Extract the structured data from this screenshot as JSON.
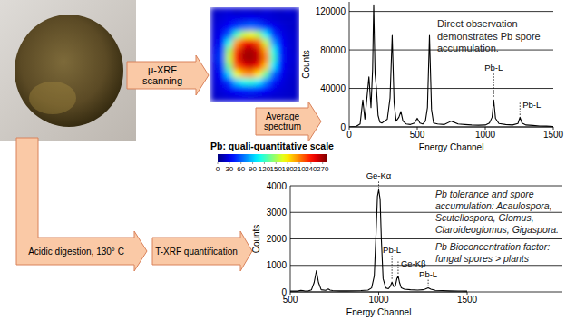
{
  "arrows": {
    "scan": "μ-XRF scanning",
    "average": "Average spectrum",
    "digestion": "Acidic digestion, 130° C",
    "quantification": "T-XRF quantification"
  },
  "heatmap": {
    "cells": [
      [
        20,
        22,
        25,
        20,
        24,
        22,
        20,
        25,
        22,
        20,
        24,
        20
      ],
      [
        22,
        25,
        28,
        30,
        28,
        32,
        30,
        26,
        24,
        22,
        20,
        22
      ],
      [
        24,
        28,
        35,
        50,
        60,
        65,
        58,
        45,
        32,
        26,
        22,
        20
      ],
      [
        25,
        32,
        60,
        120,
        160,
        170,
        150,
        100,
        50,
        30,
        24,
        22
      ],
      [
        26,
        40,
        110,
        200,
        240,
        250,
        220,
        160,
        80,
        35,
        25,
        22
      ],
      [
        28,
        50,
        150,
        230,
        265,
        270,
        255,
        200,
        110,
        40,
        26,
        22
      ],
      [
        28,
        55,
        160,
        240,
        270,
        272,
        260,
        210,
        120,
        42,
        26,
        24
      ],
      [
        26,
        48,
        140,
        220,
        250,
        258,
        240,
        190,
        100,
        38,
        25,
        22
      ],
      [
        25,
        38,
        95,
        170,
        200,
        205,
        180,
        130,
        65,
        32,
        24,
        22
      ],
      [
        24,
        30,
        50,
        90,
        110,
        115,
        100,
        70,
        40,
        28,
        22,
        20
      ],
      [
        22,
        26,
        32,
        40,
        45,
        48,
        42,
        35,
        28,
        24,
        22,
        20
      ],
      [
        20,
        22,
        24,
        26,
        28,
        26,
        25,
        24,
        22,
        22,
        20,
        20
      ]
    ],
    "colorbar": {
      "title": "Pb: quali-quantitative scale",
      "range": [
        0,
        280
      ],
      "ticks": [
        0,
        30,
        60,
        90,
        120,
        150,
        180,
        210,
        240,
        270
      ]
    }
  },
  "chart_data": [
    {
      "type": "line",
      "x": [
        0,
        50,
        80,
        100,
        115,
        130,
        145,
        160,
        172,
        180,
        190,
        200,
        212,
        225,
        240,
        260,
        280,
        300,
        316,
        330,
        345,
        365,
        380,
        395,
        420,
        450,
        480,
        500,
        520,
        540,
        560,
        575,
        590,
        605,
        620,
        650,
        700,
        750,
        800,
        850,
        900,
        950,
        1000,
        1030,
        1050,
        1062,
        1075,
        1100,
        1150,
        1200,
        1240,
        1255,
        1270,
        1300,
        1350,
        1400,
        1450,
        1500
      ],
      "series": [
        {
          "color": "#000000",
          "values": [
            0,
            500,
            3000,
            28000,
            8000,
            30000,
            52000,
            20000,
            60000,
            127000,
            55000,
            40000,
            12000,
            5000,
            4000,
            6000,
            8000,
            30000,
            95000,
            25000,
            6000,
            10000,
            16000,
            6000,
            3000,
            2500,
            4000,
            9000,
            4000,
            3000,
            6000,
            20000,
            95000,
            18000,
            4000,
            3000,
            2500,
            6000,
            3000,
            2500,
            2000,
            1800,
            2000,
            4000,
            10000,
            28000,
            9000,
            3500,
            2500,
            2000,
            3500,
            10000,
            4000,
            2000,
            1500,
            1000,
            800,
            500
          ]
        }
      ],
      "xlim": [
        0,
        1500
      ],
      "xticks": [
        0,
        500,
        1000,
        1500
      ],
      "ylim": [
        0,
        130000
      ],
      "yticks": [
        0,
        40000,
        80000,
        120000
      ],
      "x_label": "Energy Channel",
      "y_label": "Counts",
      "grid": true,
      "annotations": [
        {
          "text": "Direct observation demonstrates Pb spore accumulation."
        },
        {
          "text": "Pb-L",
          "x": 1062
        },
        {
          "text": "Pb-L",
          "x": 1255
        }
      ]
    },
    {
      "type": "line",
      "x": [
        500,
        540,
        560,
        580,
        600,
        620,
        635,
        648,
        660,
        675,
        700,
        715,
        725,
        740,
        780,
        820,
        860,
        900,
        940,
        960,
        975,
        985,
        993,
        1000,
        1008,
        1015,
        1025,
        1040,
        1055,
        1065,
        1075,
        1085,
        1095,
        1103,
        1110,
        1118,
        1128,
        1145,
        1180,
        1220,
        1250,
        1265,
        1280,
        1295,
        1320,
        1360,
        1400,
        1450,
        1500
      ],
      "series": [
        {
          "color": "#000000",
          "values": [
            30,
            30,
            60,
            40,
            35,
            80,
            350,
            800,
            350,
            80,
            60,
            110,
            70,
            50,
            40,
            40,
            45,
            50,
            70,
            150,
            600,
            2200,
            3600,
            3850,
            3500,
            2000,
            500,
            150,
            120,
            200,
            370,
            200,
            250,
            500,
            600,
            350,
            150,
            100,
            80,
            70,
            80,
            110,
            150,
            100,
            60,
            50,
            40,
            35,
            30
          ]
        }
      ],
      "xlim": [
        500,
        1500
      ],
      "xticks": [
        500,
        1000,
        1500
      ],
      "ylim": [
        0,
        4000
      ],
      "yticks": [
        0,
        1000,
        2000,
        3000,
        4000
      ],
      "x_label": "Energy Channel",
      "y_label": "Counts",
      "grid": true,
      "annotations": [
        {
          "text": "Ge-Kα",
          "x": 1000
        },
        {
          "text": "Pb-L",
          "x": 1075
        },
        {
          "text": "Ge-Kβ",
          "x": 1110
        },
        {
          "text": "Pb-L",
          "x": 1280
        },
        {
          "text": "Pb tolerance and spore accumulation: Acaulospora, Scutellospora, Glomus, Claroideoglomus, Gigaspora."
        },
        {
          "text": "Pb Bioconcentration factor: fungal spores > plants"
        }
      ]
    }
  ]
}
